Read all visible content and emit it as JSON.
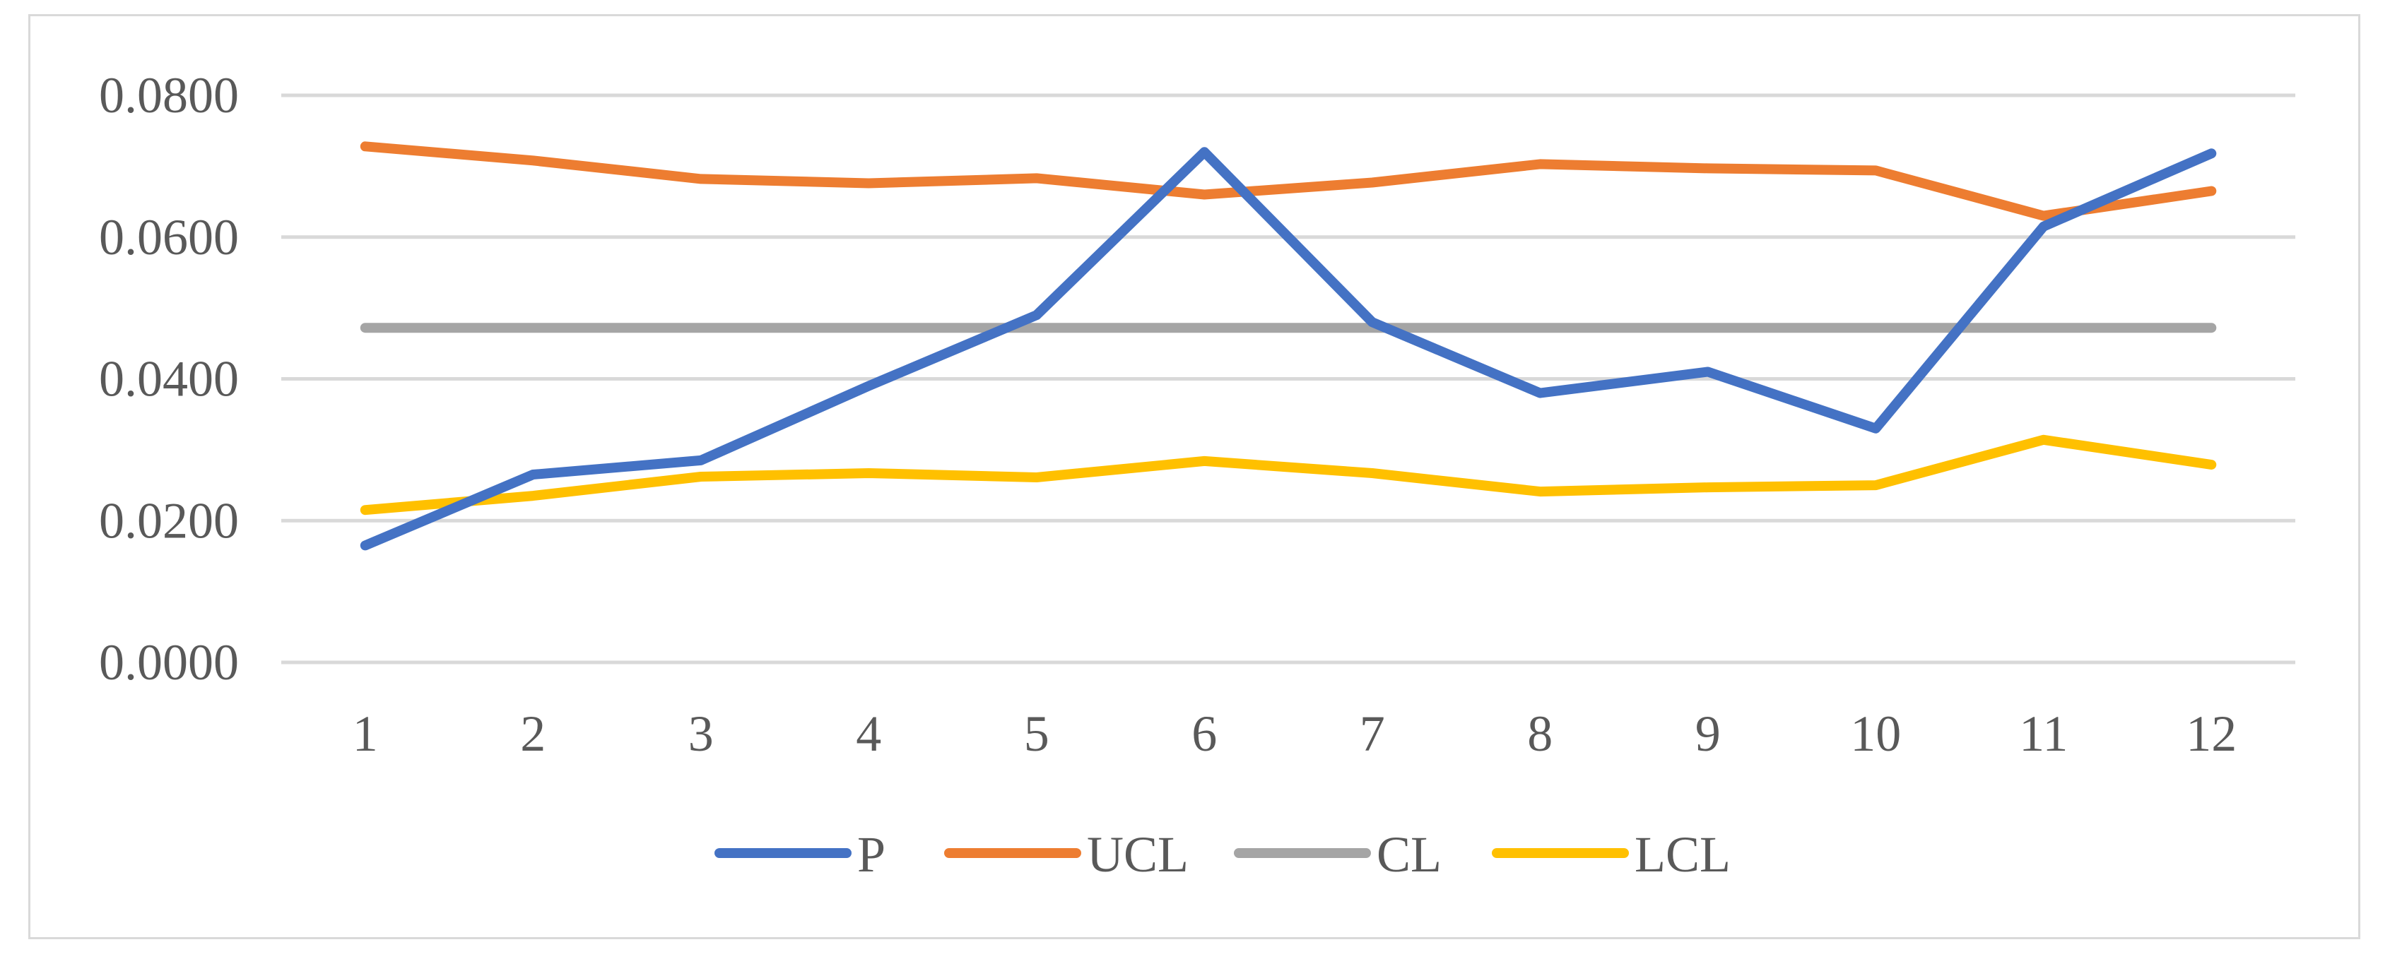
{
  "chart_data": {
    "type": "line",
    "title": "",
    "xlabel": "",
    "ylabel": "",
    "categories": [
      "1",
      "2",
      "3",
      "4",
      "5",
      "6",
      "7",
      "8",
      "9",
      "10",
      "11",
      "12"
    ],
    "ylim": [
      0,
      0.08
    ],
    "yticks": [
      "0.0000",
      "0.0200",
      "0.0400",
      "0.0600",
      "0.0800"
    ],
    "ytick_values": [
      0,
      0.02,
      0.04,
      0.06,
      0.08
    ],
    "grid": true,
    "legend_position": "bottom",
    "series": [
      {
        "name": "P",
        "color": "#4472c4",
        "values": [
          0.0165,
          0.0265,
          0.0285,
          0.039,
          0.049,
          0.072,
          0.048,
          0.038,
          0.041,
          0.033,
          0.0615,
          0.0718
        ]
      },
      {
        "name": "UCL",
        "color": "#ed7d31",
        "values": [
          0.0728,
          0.0708,
          0.0682,
          0.0676,
          0.0683,
          0.066,
          0.0677,
          0.0703,
          0.0697,
          0.0694,
          0.063,
          0.0665
        ]
      },
      {
        "name": "CL",
        "color": "#a5a5a5",
        "values": [
          0.0472,
          0.0472,
          0.0472,
          0.0472,
          0.0472,
          0.0472,
          0.0472,
          0.0472,
          0.0472,
          0.0472,
          0.0472,
          0.0472
        ]
      },
      {
        "name": "LCL",
        "color": "#ffc000",
        "values": [
          0.0215,
          0.0235,
          0.0262,
          0.0267,
          0.0261,
          0.0284,
          0.0267,
          0.0241,
          0.0247,
          0.025,
          0.0314,
          0.0279
        ]
      }
    ],
    "axis_color": "#d9d9d9",
    "grid_color": "#d9d9d9"
  }
}
